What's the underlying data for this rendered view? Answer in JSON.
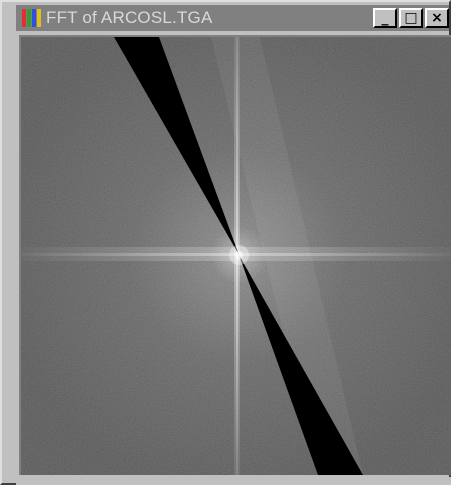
{
  "window": {
    "title": "FFT  of ARCOSL.TGA",
    "minimize_glyph": "_",
    "maximize_glyph": "□",
    "close_glyph": "×"
  },
  "icons": {
    "app": "fft-app-icon",
    "minimize": "minimize-icon",
    "maximize": "maximize-icon",
    "close": "close-icon"
  },
  "colors": {
    "titlebar": "#808080",
    "title_text": "#d8d8d8",
    "chrome": "#c0c0c0",
    "spectrum_background": "#4a4a4a",
    "spectrum_center": "#e8e8e8",
    "wedge": "#000000"
  },
  "image": {
    "description_type": "fft-magnitude-spectrum"
  }
}
